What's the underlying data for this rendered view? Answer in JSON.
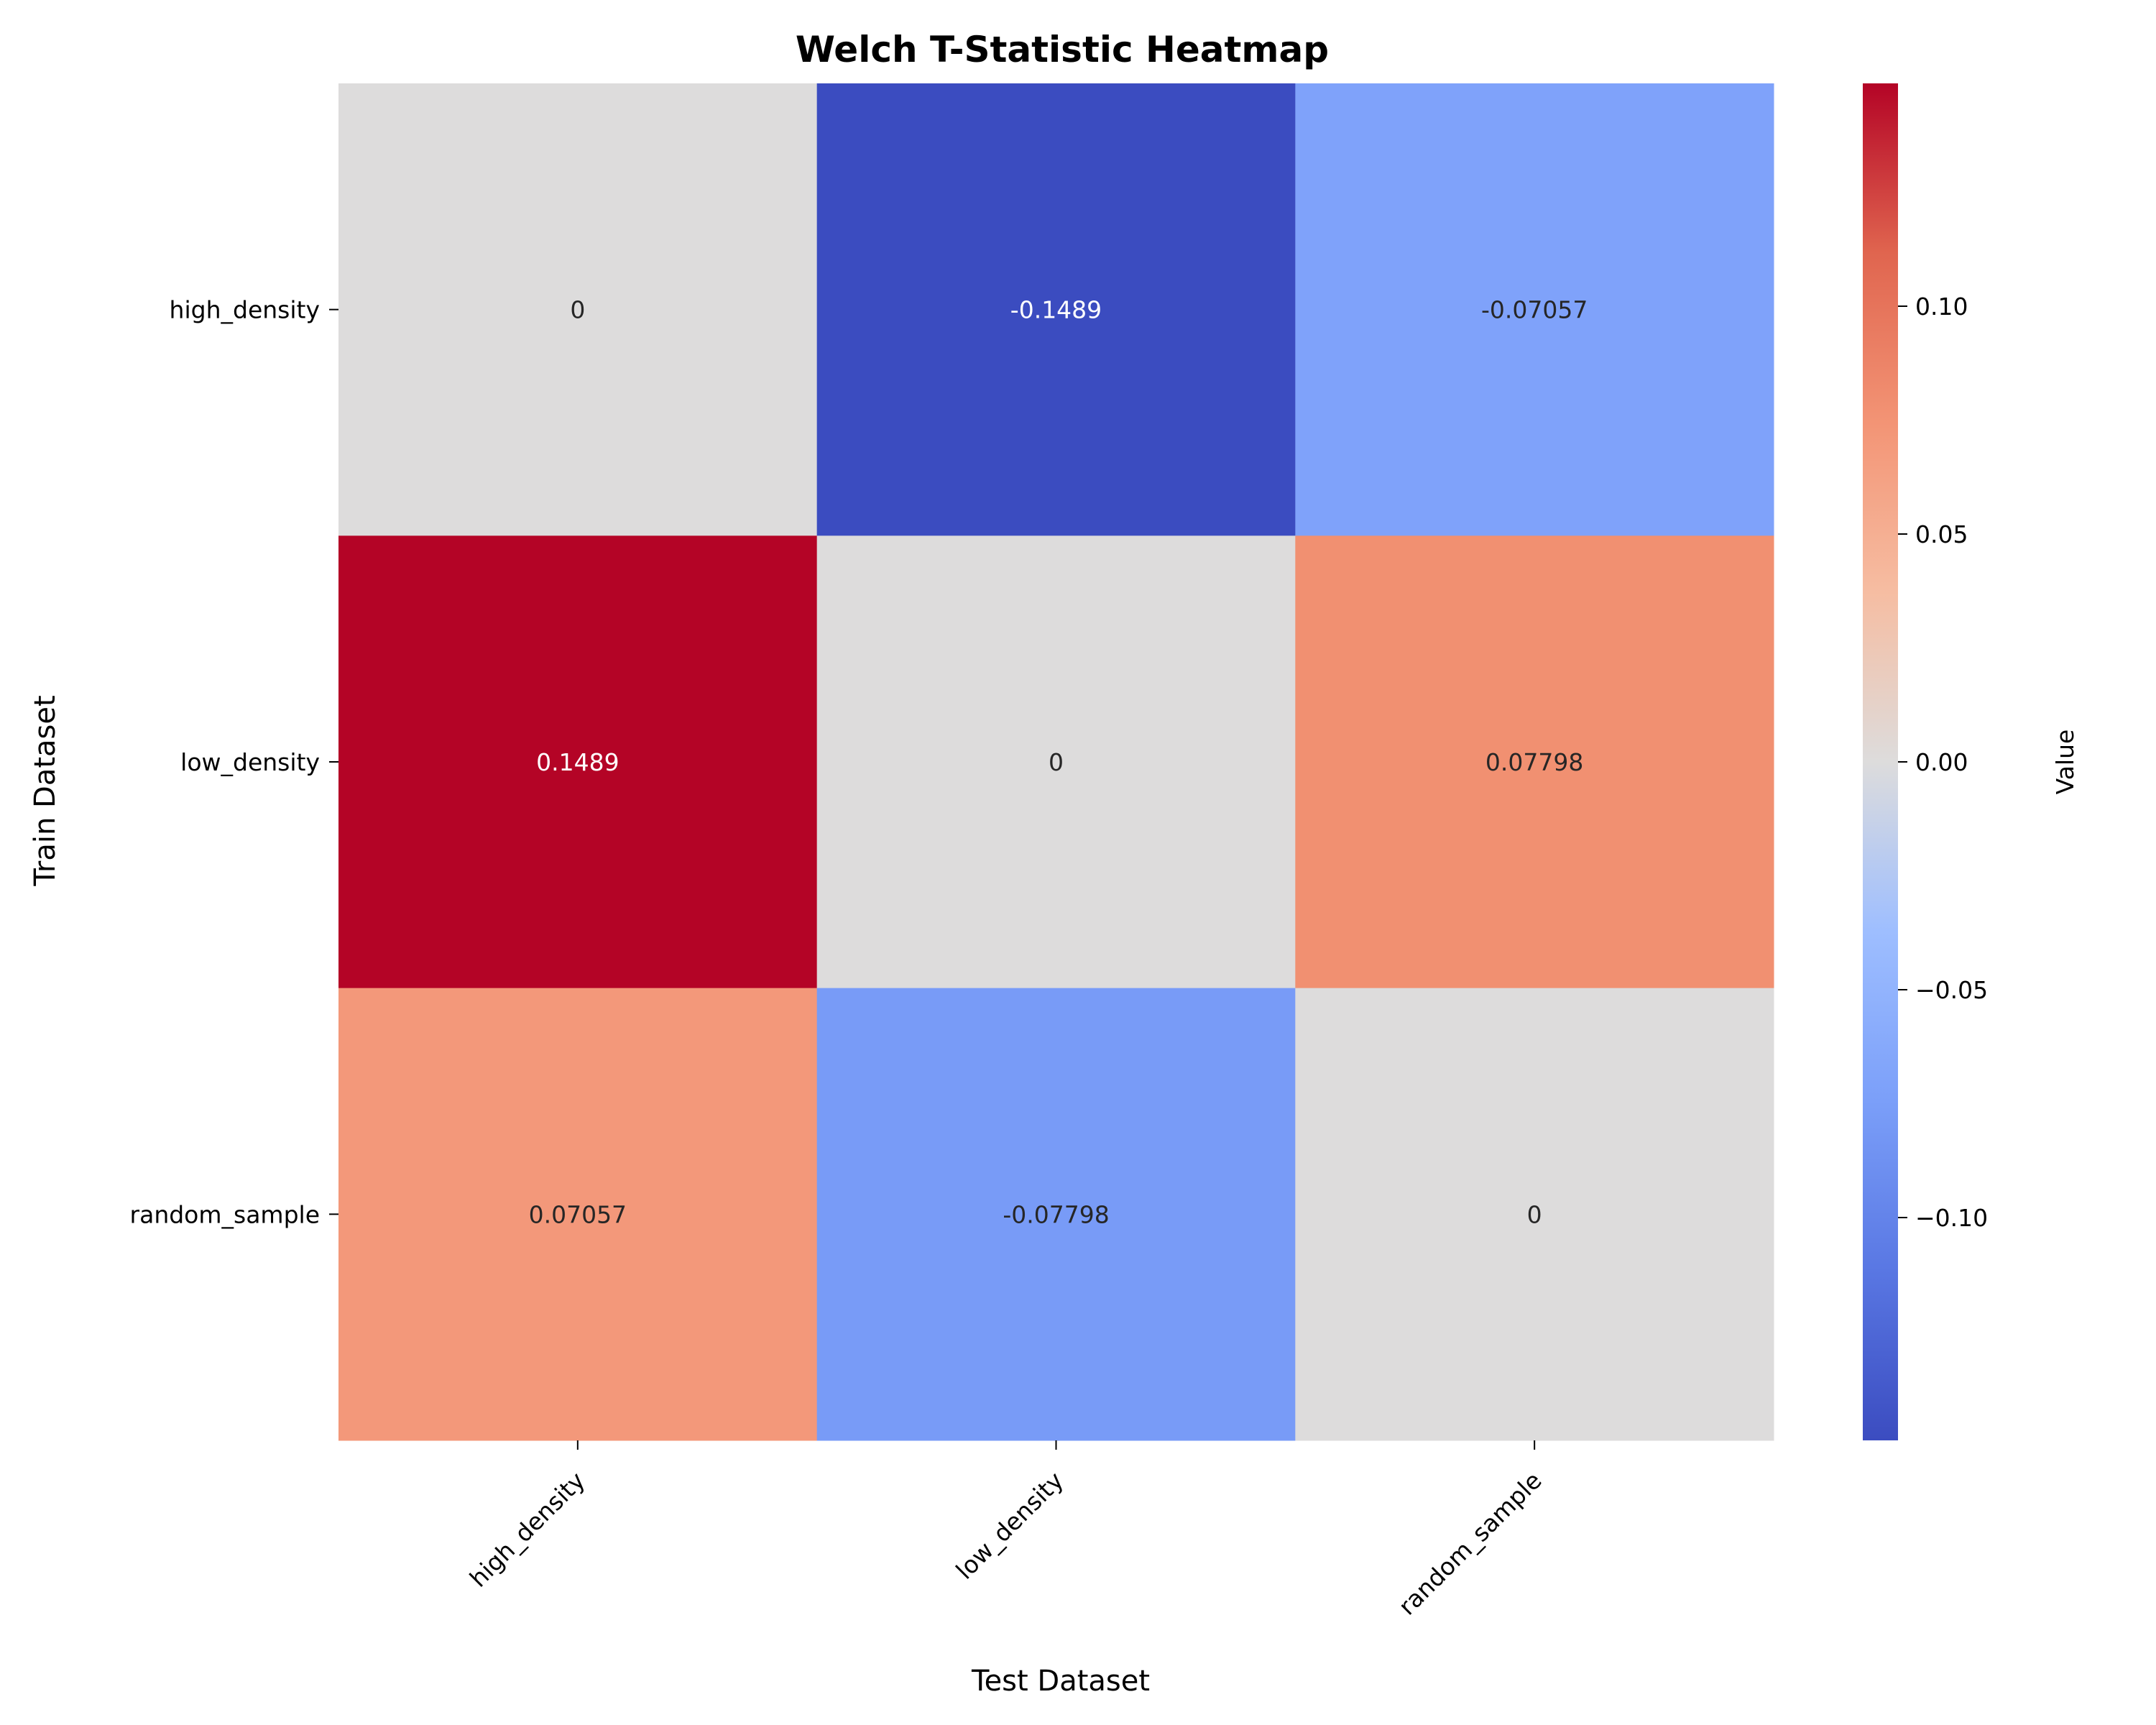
{
  "chart_data": {
    "type": "heatmap",
    "title": "Welch T-Statistic Heatmap",
    "xlabel": "Test Dataset",
    "ylabel": "Train Dataset",
    "x_categories": [
      "high_density",
      "low_density",
      "random_sample"
    ],
    "y_categories": [
      "high_density",
      "low_density",
      "random_sample"
    ],
    "values": [
      [
        0,
        -0.1489,
        -0.07057
      ],
      [
        0.1489,
        0,
        0.07798
      ],
      [
        0.07057,
        -0.07798,
        0
      ]
    ],
    "annotations": [
      [
        "0",
        "-0.1489",
        "-0.07057"
      ],
      [
        "0.1489",
        "0",
        "0.07798"
      ],
      [
        "0.07057",
        "-0.07798",
        "0"
      ]
    ],
    "colormap": "coolwarm",
    "vmin": -0.1489,
    "vmax": 0.1489,
    "colorbar": {
      "label": "Value",
      "ticks": [
        0.1,
        0.05,
        0.0,
        -0.05,
        -0.1
      ],
      "tick_labels": [
        "0.10",
        "0.05",
        "0.00",
        "−0.05",
        "−0.10"
      ]
    },
    "grid": false,
    "legend": "colorbar-right"
  }
}
